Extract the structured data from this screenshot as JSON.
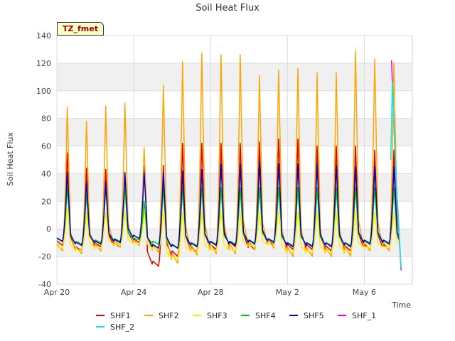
{
  "chart_data": {
    "type": "line",
    "title": "Soil Heat Flux",
    "ylabel": "Soil Heat Flux",
    "xlabel": "Time",
    "site_tag": "TZ_fmet",
    "ylim": [
      -40,
      140
    ],
    "yticks": [
      -40,
      -20,
      0,
      20,
      40,
      60,
      80,
      100,
      120,
      140
    ],
    "xlim": [
      "2023-04-20",
      "2023-05-08T12:00"
    ],
    "xticks": [
      {
        "date": "2023-04-20",
        "label": "Apr 20"
      },
      {
        "date": "2023-04-24",
        "label": "Apr 24"
      },
      {
        "date": "2023-04-28",
        "label": "Apr 28"
      },
      {
        "date": "2023-05-02",
        "label": "May 2"
      },
      {
        "date": "2023-05-06",
        "label": "May 6"
      }
    ],
    "grid": true,
    "banded_background": true,
    "legend_position": "bottom",
    "x_dates": [
      "2023-04-20",
      "2023-04-21",
      "2023-04-22",
      "2023-04-23",
      "2023-04-24",
      "2023-04-25",
      "2023-04-26",
      "2023-04-27",
      "2023-04-28",
      "2023-04-29",
      "2023-04-30",
      "2023-05-01",
      "2023-05-02",
      "2023-05-03",
      "2023-05-04",
      "2023-05-05",
      "2023-05-06",
      "2023-05-07"
    ],
    "series": [
      {
        "name": "SHF1",
        "color": "#dd0000",
        "daily_max": [
          55,
          44,
          43,
          40,
          45,
          46,
          62,
          62,
          62,
          62,
          63,
          65,
          65,
          60,
          60,
          60,
          57,
          57
        ],
        "daily_min": [
          -12,
          -16,
          -13,
          -13,
          -10,
          -27,
          -20,
          -17,
          -15,
          -13,
          -15,
          -12,
          -15,
          -15,
          -16,
          -16,
          -15,
          -15
        ]
      },
      {
        "name": "SHF2",
        "color": "#ffa500",
        "daily_max": [
          88,
          78,
          89,
          91,
          59,
          104,
          121,
          127,
          126,
          126,
          111,
          115,
          116,
          113,
          113,
          129,
          123,
          120
        ],
        "daily_min": [
          -16,
          -18,
          -16,
          -13,
          -12,
          -17,
          -25,
          -19,
          -18,
          -18,
          -15,
          -14,
          -20,
          -20,
          -20,
          -20,
          -16,
          -16
        ]
      },
      {
        "name": "SHF3",
        "color": "#ffee00",
        "daily_max": [
          15,
          12,
          12,
          12,
          12,
          12,
          12,
          12,
          12,
          12,
          12,
          12,
          12,
          12,
          12,
          12,
          12,
          12
        ],
        "daily_min": [
          -14,
          -16,
          -14,
          -12,
          -11,
          -15,
          -22,
          -17,
          -16,
          -16,
          -13,
          -12,
          -17,
          -17,
          -17,
          -17,
          -14,
          -14
        ]
      },
      {
        "name": "SHF4",
        "color": "#00cc00",
        "daily_max": [
          30,
          25,
          30,
          30,
          20,
          30,
          30,
          30,
          30,
          30,
          30,
          30,
          30,
          30,
          30,
          30,
          30,
          30
        ],
        "daily_min": [
          -9,
          -11,
          -10,
          -9,
          -8,
          -11,
          -14,
          -12,
          -11,
          -11,
          -10,
          -9,
          -12,
          -12,
          -12,
          -12,
          -10,
          -10
        ]
      },
      {
        "name": "SHF5",
        "color": "#0000cc",
        "daily_max": [
          41,
          34,
          34,
          41,
          41,
          41,
          42,
          43,
          47,
          47,
          49,
          47,
          47,
          47,
          46,
          45,
          45,
          45
        ],
        "daily_min": [
          -9,
          -12,
          -11,
          -10,
          -7,
          -14,
          -14,
          -13,
          -12,
          -12,
          -11,
          -10,
          -13,
          -13,
          -13,
          -13,
          -11,
          -11
        ]
      },
      {
        "name": "SHF_1",
        "color": "#ee00ee",
        "points": [
          {
            "x": "2023-05-07T10:00",
            "y": 122
          },
          {
            "x": "2023-05-07T14:00",
            "y": 60
          },
          {
            "x": "2023-05-07T18:00",
            "y": 10
          },
          {
            "x": "2023-05-07T22:00",
            "y": -30
          }
        ]
      },
      {
        "name": "SHF_2",
        "color": "#00eeee",
        "points": [
          {
            "x": "2023-05-07T09:00",
            "y": 50
          },
          {
            "x": "2023-05-07T11:00",
            "y": 106
          },
          {
            "x": "2023-05-07T15:00",
            "y": 45
          },
          {
            "x": "2023-05-07T22:00",
            "y": -28
          }
        ]
      }
    ]
  }
}
